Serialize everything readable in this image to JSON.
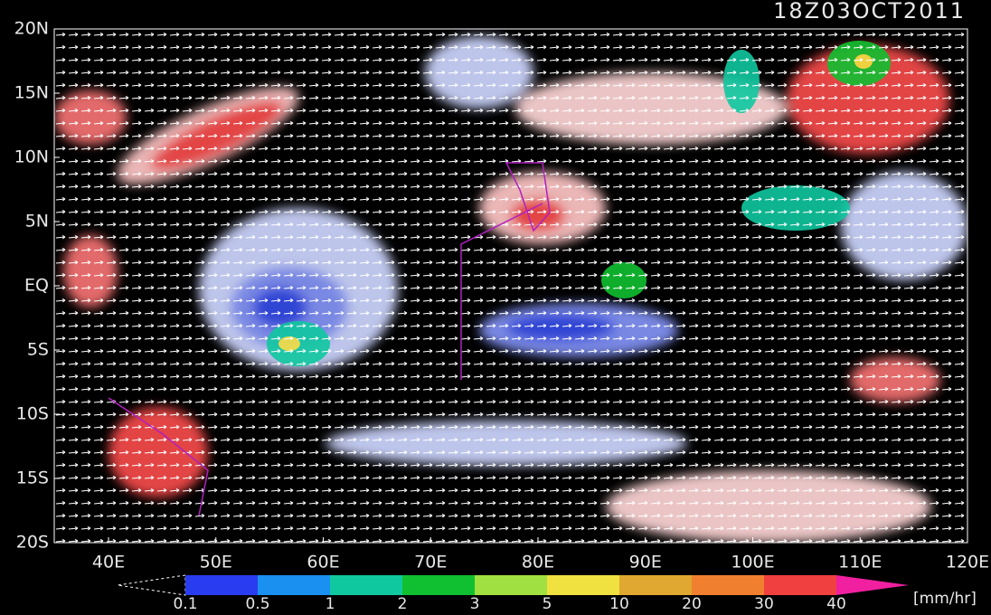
{
  "title": "18Z03OCT2011",
  "latitude_labels": [
    "20N",
    "15N",
    "10N",
    "5N",
    "EQ",
    "5S",
    "10S",
    "15S",
    "20S"
  ],
  "longitude_labels": [
    "40E",
    "50E",
    "60E",
    "70E",
    "80E",
    "90E",
    "100E",
    "110E",
    "120E"
  ],
  "legend": {
    "labels": [
      "0.1",
      "0.5",
      "1",
      "2",
      "3",
      "5",
      "10",
      "20",
      "30",
      "40"
    ],
    "colors": [
      "#2a3cf0",
      "#1a90f0",
      "#10c8a0",
      "#10c030",
      "#a0e040",
      "#f0e040",
      "#e0a830",
      "#f08030",
      "#f04040"
    ],
    "over_color": "#f020a0",
    "unit": "[mm/hr]"
  }
}
